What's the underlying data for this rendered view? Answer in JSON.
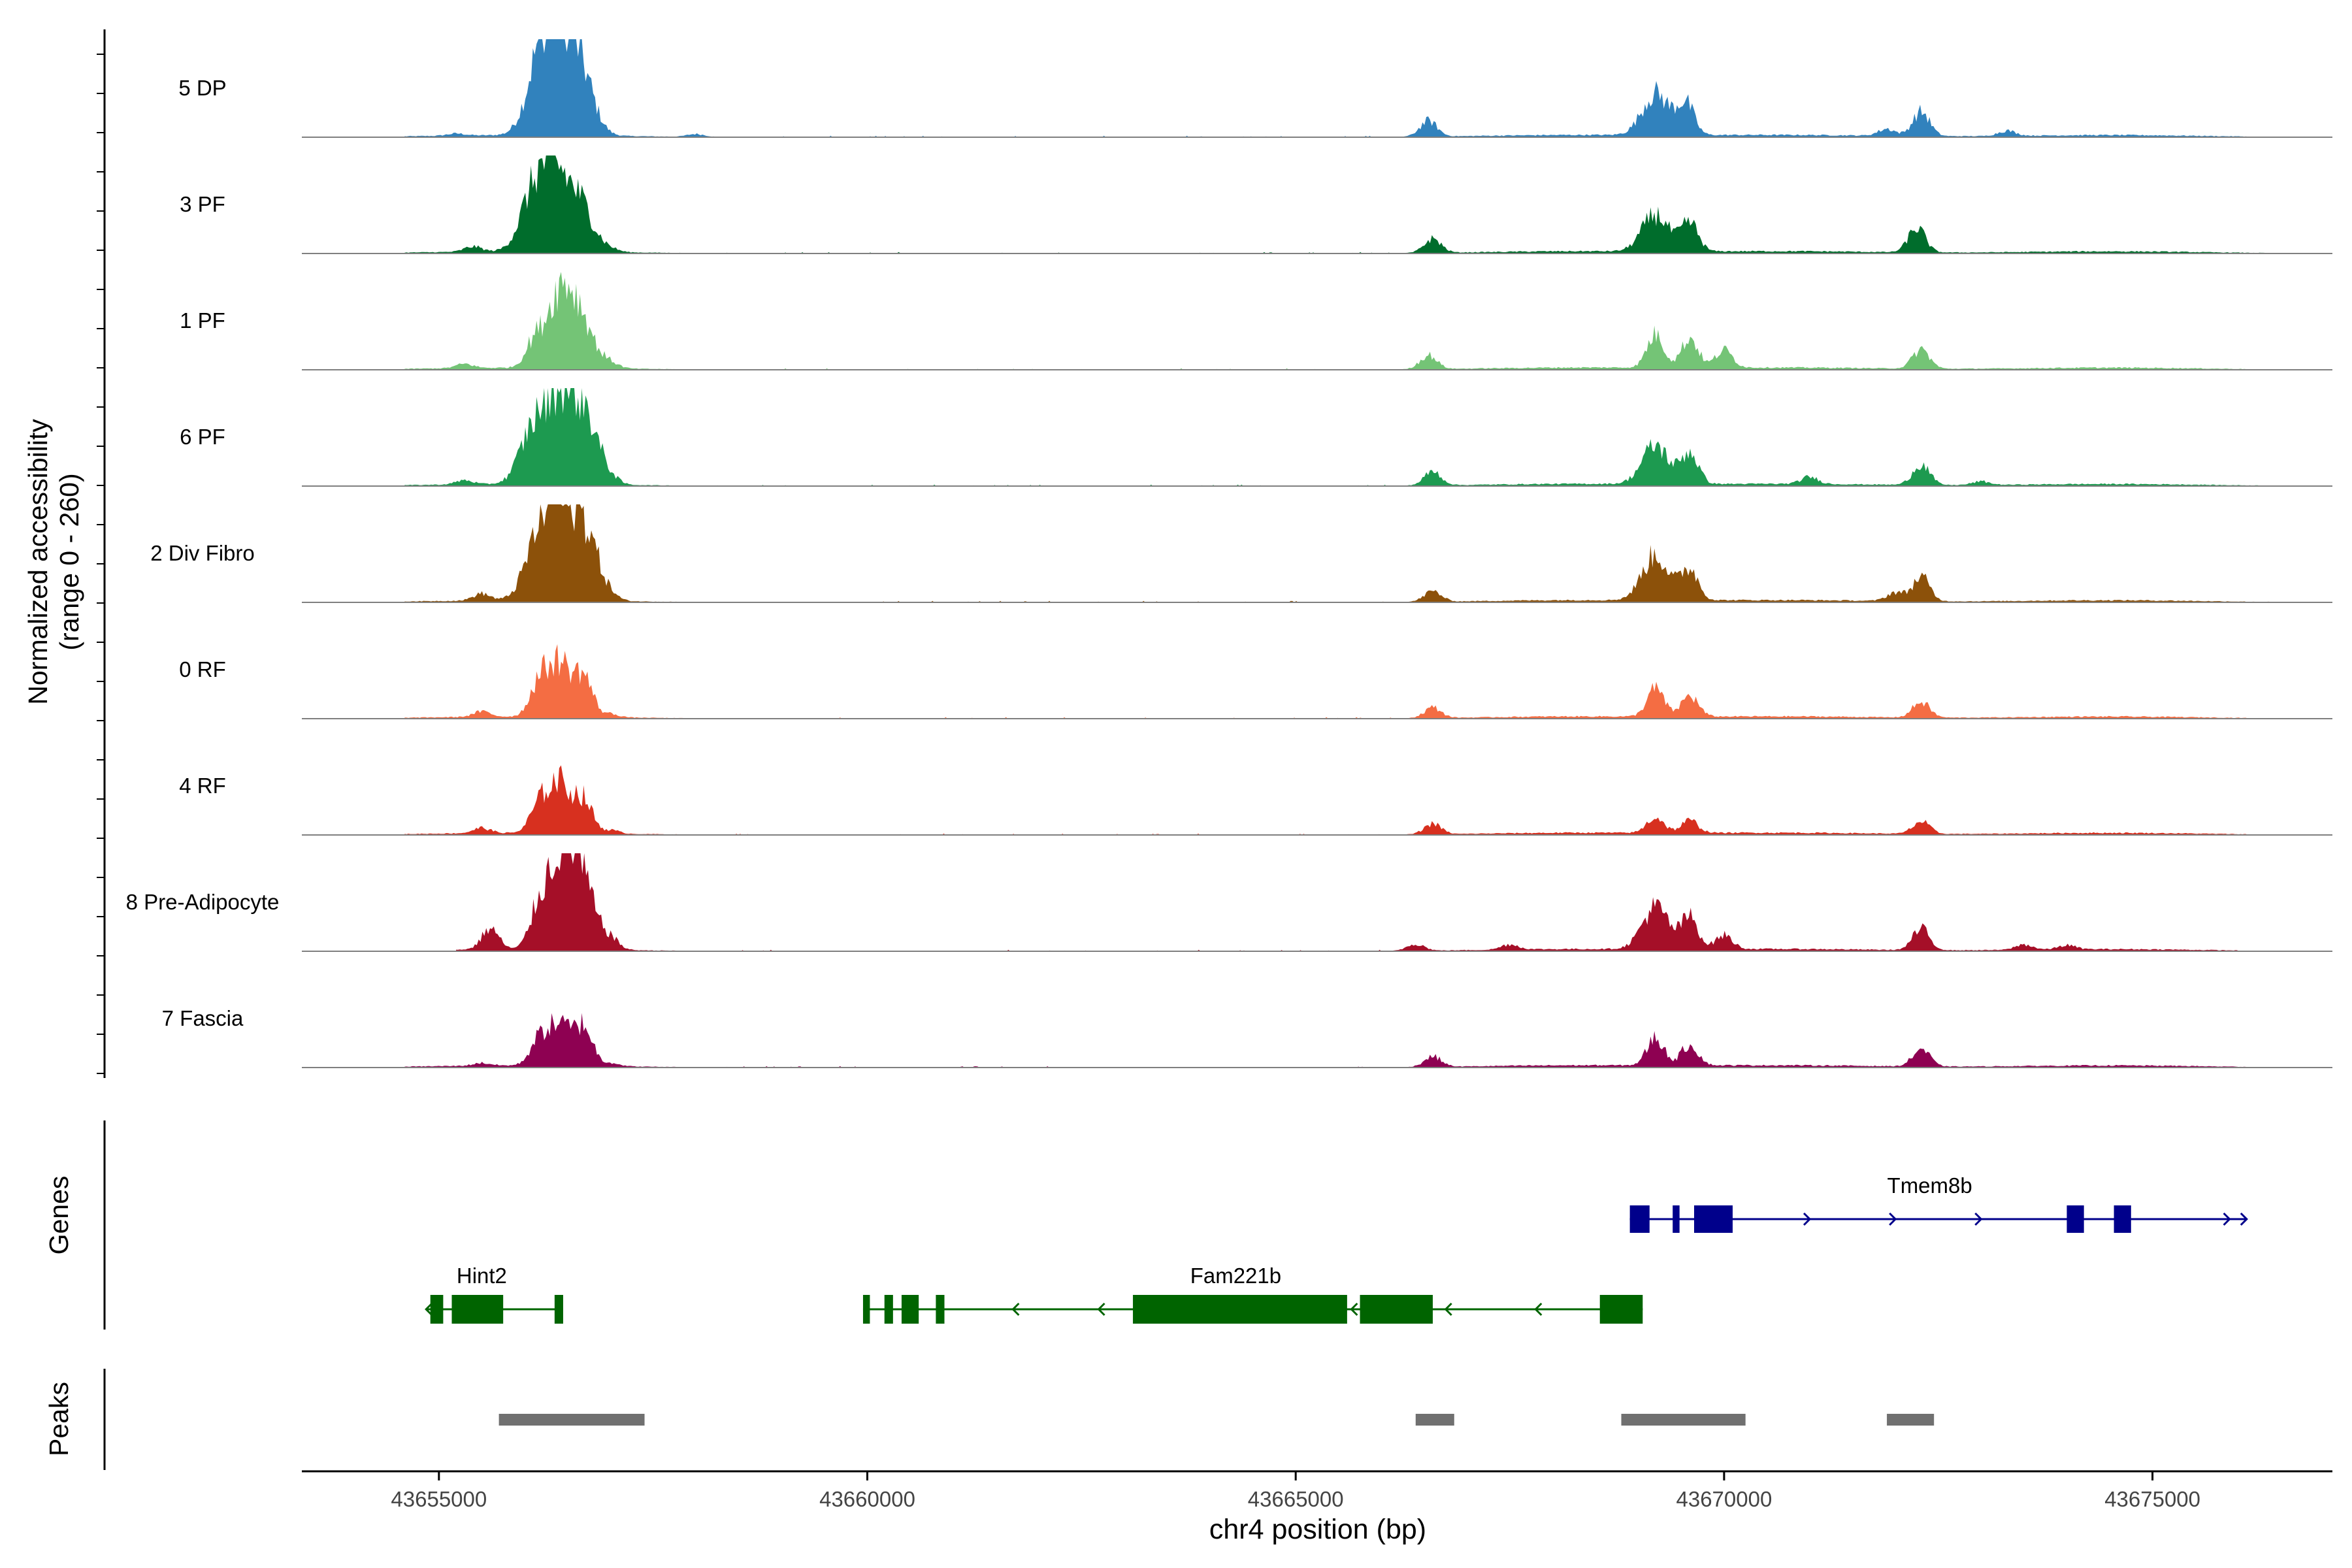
{
  "chart_data": {
    "type": "area",
    "title": "",
    "ylabel_line1": "Normalized accessibility",
    "ylabel_line2": "(range 0 - 260)",
    "yrange": [
      0,
      260
    ],
    "xlabel": "chr4 position (bp)",
    "xlim": [
      43653400,
      43677100
    ],
    "xticks": [
      43655000,
      43660000,
      43665000,
      43670000,
      43675000
    ],
    "xtick_labels": [
      "43655000",
      "43660000",
      "43665000",
      "43670000",
      "43675000"
    ],
    "tracks": [
      {
        "name": "5 DP",
        "color": "#3182bd",
        "start": 43654600,
        "end": 43676100,
        "peaks": [
          [
            43656400,
            250
          ],
          [
            43656180,
            200
          ],
          [
            43656650,
            170
          ],
          [
            43666550,
            45
          ],
          [
            43669200,
            120
          ],
          [
            43669550,
            90
          ],
          [
            43672300,
            70
          ],
          [
            43671900,
            20
          ],
          [
            43673300,
            15
          ],
          [
            43658000,
            8
          ],
          [
            43655200,
            6
          ]
        ],
        "noise": [
          43656000,
          43668200,
          43670800,
          43674500
        ]
      },
      {
        "name": "3 PF",
        "color": "#006d2c",
        "start": 43654600,
        "end": 43676600,
        "peaks": [
          [
            43656350,
            200
          ],
          [
            43656100,
            150
          ],
          [
            43656650,
            130
          ],
          [
            43666600,
            40
          ],
          [
            43669200,
            105
          ],
          [
            43669600,
            80
          ],
          [
            43672250,
            70
          ],
          [
            43655400,
            15
          ],
          [
            43657000,
            8
          ]
        ],
        "noise": [
          43656000,
          43668200,
          43670800,
          43674500
        ]
      },
      {
        "name": "1 PF",
        "color": "#74c476",
        "start": 43654600,
        "end": 43676100,
        "peaks": [
          [
            43656400,
            200
          ],
          [
            43656650,
            130
          ],
          [
            43656100,
            60
          ],
          [
            43666550,
            40
          ],
          [
            43669200,
            95
          ],
          [
            43669600,
            85
          ],
          [
            43670000,
            50
          ],
          [
            43672300,
            55
          ],
          [
            43657000,
            15
          ],
          [
            43655300,
            12
          ]
        ],
        "noise": [
          43656000,
          43668200,
          43670800,
          43674500
        ]
      },
      {
        "name": "6 PF",
        "color": "#1d9a50",
        "start": 43654600,
        "end": 43676600,
        "peaks": [
          [
            43656400,
            230
          ],
          [
            43656700,
            200
          ],
          [
            43656100,
            150
          ],
          [
            43666600,
            40
          ],
          [
            43669200,
            110
          ],
          [
            43669600,
            90
          ],
          [
            43672300,
            60
          ],
          [
            43671000,
            20
          ],
          [
            43657000,
            15
          ],
          [
            43655300,
            12
          ],
          [
            43673000,
            10
          ]
        ],
        "noise": [
          43656000,
          43668200,
          43670800,
          43674500
        ]
      },
      {
        "name": "2 Div Fibro",
        "color": "#8c510a",
        "start": 43654600,
        "end": 43676600,
        "peaks": [
          [
            43656400,
            240
          ],
          [
            43656700,
            200
          ],
          [
            43656150,
            150
          ],
          [
            43666600,
            30
          ],
          [
            43669200,
            130
          ],
          [
            43669600,
            90
          ],
          [
            43672300,
            70
          ],
          [
            43672000,
            25
          ],
          [
            43655500,
            20
          ],
          [
            43657000,
            10
          ]
        ],
        "noise": [
          43656000,
          43668200,
          43670800,
          43674500
        ]
      },
      {
        "name": "0 RF",
        "color": "#f46d43",
        "start": 43654600,
        "end": 43676100,
        "peaks": [
          [
            43656400,
            160
          ],
          [
            43656700,
            100
          ],
          [
            43656150,
            70
          ],
          [
            43666600,
            30
          ],
          [
            43669200,
            80
          ],
          [
            43669600,
            60
          ],
          [
            43672300,
            45
          ],
          [
            43655500,
            15
          ],
          [
            43657000,
            10
          ]
        ],
        "noise": [
          43656000,
          43668200,
          43670800,
          43674500
        ]
      },
      {
        "name": "4 RF",
        "color": "#d7301f",
        "start": 43654600,
        "end": 43676100,
        "peaks": [
          [
            43656400,
            150
          ],
          [
            43656700,
            80
          ],
          [
            43656150,
            50
          ],
          [
            43666600,
            30
          ],
          [
            43669200,
            45
          ],
          [
            43669600,
            35
          ],
          [
            43672300,
            35
          ],
          [
            43655500,
            15
          ],
          [
            43657000,
            10
          ]
        ],
        "noise": [
          43656000,
          43668200,
          43670800,
          43674500
        ]
      },
      {
        "name": "8 Pre-Adipocyte",
        "color": "#a50f28",
        "start": 43655200,
        "end": 43676000,
        "peaks": [
          [
            43656400,
            240
          ],
          [
            43656650,
            200
          ],
          [
            43656150,
            80
          ],
          [
            43655600,
            60
          ],
          [
            43657000,
            30
          ],
          [
            43669200,
            120
          ],
          [
            43669600,
            90
          ],
          [
            43670000,
            40
          ],
          [
            43672300,
            60
          ],
          [
            43666400,
            20
          ],
          [
            43667500,
            15
          ],
          [
            43673500,
            15
          ],
          [
            43674000,
            12
          ]
        ],
        "noise": [
          43656000,
          43668200,
          43670800,
          43674500
        ]
      },
      {
        "name": "7 Fascia",
        "color": "#8e0152",
        "start": 43654600,
        "end": 43676100,
        "peaks": [
          [
            43656400,
            120
          ],
          [
            43656700,
            100
          ],
          [
            43656150,
            50
          ],
          [
            43666600,
            30
          ],
          [
            43669200,
            80
          ],
          [
            43669600,
            60
          ],
          [
            43672300,
            50
          ],
          [
            43657000,
            10
          ],
          [
            43655500,
            8
          ]
        ],
        "noise": [
          43656000,
          43668200,
          43670800,
          43674500
        ]
      }
    ],
    "genes": {
      "title": "Genes",
      "items": [
        {
          "name": "Tmem8b",
          "strand": "+",
          "color": "#00008b",
          "start": 43668900,
          "end": 43676100,
          "exons": [
            [
              43668900,
              43669130
            ],
            [
              43669400,
              43669480
            ],
            [
              43669650,
              43670100
            ],
            [
              43674000,
              43674200
            ],
            [
              43674550,
              43674750
            ]
          ],
          "arrows": [
            43671000,
            43672000,
            43673000,
            43675900,
            43676100
          ]
        },
        {
          "name": "Hint2",
          "strand": "-",
          "color": "#006400",
          "start": 43654850,
          "end": 43656450,
          "exons": [
            [
              43654900,
              43655050
            ],
            [
              43655150,
              43655750
            ],
            [
              43656350,
              43656450
            ]
          ],
          "arrows": [
            43654850
          ]
        },
        {
          "name": "Fam221b",
          "strand": "-",
          "color": "#006400",
          "start": 43659950,
          "end": 43669050,
          "exons": [
            [
              43659950,
              43660030
            ],
            [
              43660200,
              43660300
            ],
            [
              43660400,
              43660600
            ],
            [
              43660800,
              43660900
            ],
            [
              43663100,
              43665600
            ],
            [
              43665750,
              43666600
            ],
            [
              43668550,
              43669050
            ]
          ],
          "arrows": [
            43661700,
            43662700,
            43665650,
            43666750,
            43667800
          ]
        }
      ]
    },
    "peaks_track": {
      "title": "Peaks",
      "color": "#707070",
      "regions": [
        [
          43655700,
          43657400
        ],
        [
          43666400,
          43666850
        ],
        [
          43668800,
          43670250
        ],
        [
          43671900,
          43672450
        ]
      ]
    }
  }
}
